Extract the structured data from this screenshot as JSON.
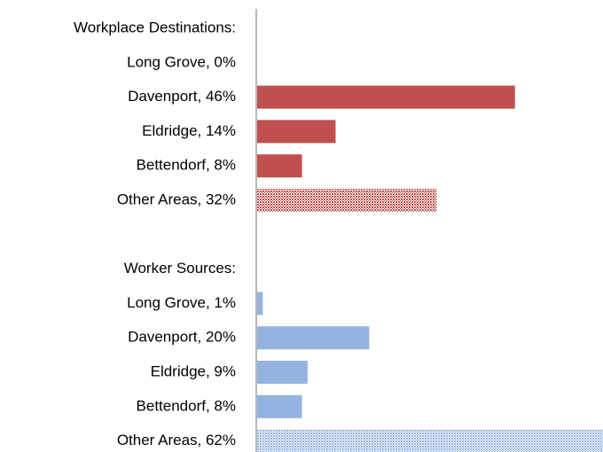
{
  "chart_data": {
    "type": "bar",
    "groups": [
      {
        "title": "Workplace Destinations:",
        "color": "#c0504d",
        "categories": [
          "Long Grove, 0%",
          "Davenport, 46%",
          "Eldridge, 14%",
          "Bettendorf, 8%",
          "Other Areas, 32%"
        ],
        "values": [
          0,
          46,
          14,
          8,
          32
        ],
        "hatched": [
          false,
          false,
          false,
          false,
          true
        ]
      },
      {
        "title": "Worker Sources:",
        "color": "#95b3e0",
        "categories": [
          "Long Grove, 1%",
          "Davenport, 20%",
          "Eldridge, 9%",
          "Bettendorf, 8%",
          "Other Areas, 62%"
        ],
        "values": [
          1,
          20,
          9,
          8,
          62
        ],
        "hatched": [
          false,
          false,
          false,
          false,
          true
        ]
      }
    ]
  }
}
